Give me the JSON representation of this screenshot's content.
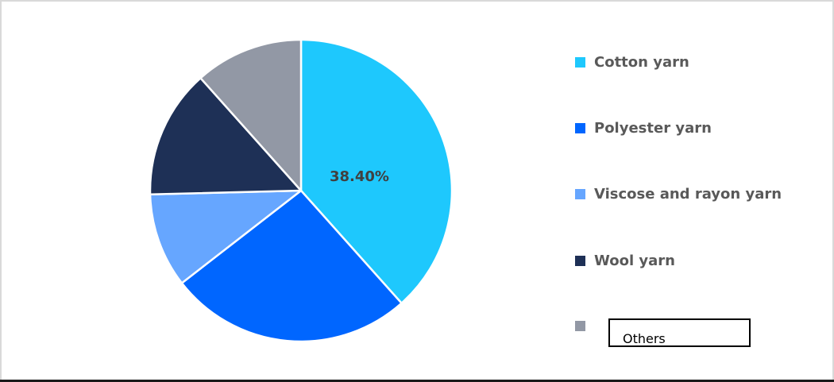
{
  "chart_data": {
    "type": "pie",
    "title": "",
    "categories": [
      "Cotton yarn",
      "Polyester yarn",
      "Viscose and rayon yarn",
      "Wool yarn",
      "Others"
    ],
    "values": [
      38.4,
      26.1,
      10.1,
      13.8,
      11.6
    ],
    "colors": [
      "#1ec8fd",
      "#0066ff",
      "#66a6ff",
      "#1e3056",
      "#9298a5"
    ],
    "data_labels": [
      {
        "category": "Cotton yarn",
        "text": "38.40%"
      }
    ],
    "start_angle_deg": 0,
    "direction": "clockwise",
    "legend_position": "right"
  },
  "pie": {
    "label_cotton": "38.40%"
  },
  "legend": {
    "items": [
      {
        "label": "Cotton yarn",
        "color": "#1ec8fd"
      },
      {
        "label": "Polyester yarn",
        "color": "#0066ff"
      },
      {
        "label": "Viscose and rayon yarn",
        "color": "#66a6ff"
      },
      {
        "label": "Wool yarn",
        "color": "#1e3056"
      },
      {
        "label": "Others",
        "color": "#9298a5"
      }
    ]
  }
}
